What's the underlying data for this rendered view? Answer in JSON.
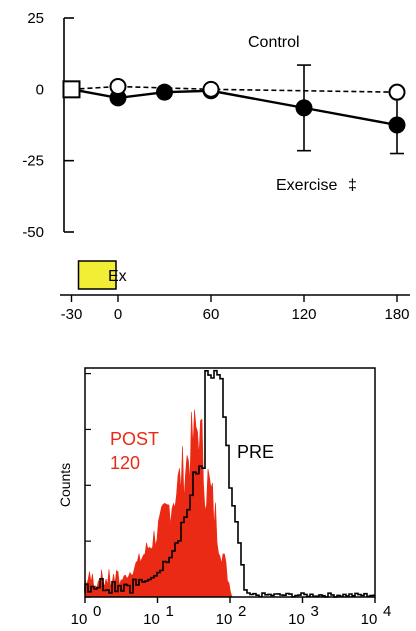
{
  "chart_data": [
    {
      "type": "line",
      "x": [
        -30,
        0,
        30,
        60,
        120,
        180
      ],
      "series": [
        {
          "name": "Control",
          "marker": "open-circle",
          "line": "dashed",
          "points": [
            [
              -30,
              0
            ],
            [
              0,
              1
            ],
            [
              60,
              0
            ],
            [
              180,
              -1
            ]
          ],
          "errors": [
            null,
            null,
            null,
            null
          ]
        },
        {
          "name": "Exercise",
          "marker": "filled-circle",
          "line": "solid",
          "points": [
            [
              -30,
              0
            ],
            [
              0,
              -3
            ],
            [
              30,
              -1
            ],
            [
              60,
              -0.5
            ],
            [
              120,
              -6.5
            ],
            [
              180,
              -12.5
            ]
          ],
          "errors": [
            null,
            null,
            null,
            null,
            15,
            10
          ]
        }
      ],
      "baseline_point": {
        "x": -30,
        "y": 0,
        "marker": "open-square"
      },
      "ylim": [
        -50,
        25
      ],
      "xlim": [
        -50,
        190
      ],
      "yticks": [
        "25",
        "0",
        "-25",
        "-50"
      ],
      "ytick_values": [
        25,
        0,
        -25,
        -50
      ],
      "xticks": [
        "-30",
        "0",
        "60",
        "120",
        "180"
      ],
      "xtick_values": [
        -30,
        0,
        60,
        120,
        180
      ],
      "labels": {
        "control": "Control",
        "exercise": "Exercise",
        "exercise_mark": "‡"
      },
      "exercise_box": {
        "label": "Ex",
        "x_start": -30,
        "x_end": 0,
        "color": "#f2ee36"
      },
      "grid": false
    },
    {
      "type": "histogram",
      "x_scale": "log",
      "xlim": [
        1,
        10000
      ],
      "xticks_exp": [
        "0",
        "1",
        "2",
        "3",
        "4"
      ],
      "ylabel": "Counts",
      "series": [
        {
          "name": "POST 120",
          "style": "filled",
          "color": "#ea2a14",
          "line1": "POST",
          "line2": "120"
        },
        {
          "name": "PRE",
          "style": "outline",
          "color": "#000000"
        }
      ],
      "grid": false
    }
  ]
}
